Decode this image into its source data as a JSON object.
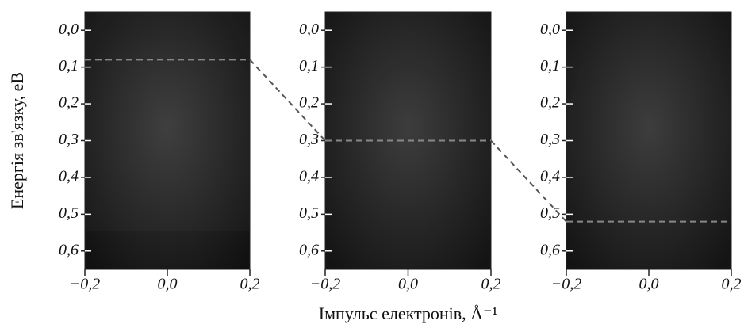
{
  "chart_data": [
    {
      "type": "image",
      "ylabel": "Енергія зв'язку, еВ",
      "xlim": [
        -0.2,
        0.2
      ],
      "ylim": [
        0.65,
        -0.05
      ],
      "xticks": [
        {
          "value": -0.2,
          "label": "−0,2"
        },
        {
          "value": 0,
          "label": "0,0"
        },
        {
          "value": 0.2,
          "label": "0,2"
        }
      ],
      "yticks": [
        {
          "value": 0,
          "label": "0,0"
        },
        {
          "value": 0.1,
          "label": "0,1"
        },
        {
          "value": 0.2,
          "label": "0,2"
        },
        {
          "value": 0.3,
          "label": "0,3"
        },
        {
          "value": 0.4,
          "label": "0,4"
        },
        {
          "value": 0.5,
          "label": "0,5"
        },
        {
          "value": 0.6,
          "label": "0,6"
        }
      ],
      "reference_line": 0.08
    },
    {
      "type": "image",
      "xlabel": "Імпульс електронів, Å⁻¹",
      "xlim": [
        -0.2,
        0.2
      ],
      "ylim": [
        0.65,
        -0.05
      ],
      "xticks": [
        {
          "value": -0.2,
          "label": "−0,2"
        },
        {
          "value": 0,
          "label": "0,0"
        },
        {
          "value": 0.2,
          "label": "0,2"
        }
      ],
      "yticks": [
        {
          "value": 0,
          "label": "0,0"
        },
        {
          "value": 0.1,
          "label": "0,1"
        },
        {
          "value": 0.2,
          "label": "0,2"
        },
        {
          "value": 0.3,
          "label": "0,3"
        },
        {
          "value": 0.4,
          "label": "0,4"
        },
        {
          "value": 0.5,
          "label": "0,5"
        },
        {
          "value": 0.6,
          "label": "0,6"
        }
      ],
      "reference_line": 0.3
    },
    {
      "type": "image",
      "xlim": [
        -0.2,
        0.2
      ],
      "ylim": [
        0.65,
        -0.05
      ],
      "xticks": [
        {
          "value": -0.2,
          "label": "−0,2"
        },
        {
          "value": 0,
          "label": "0,0"
        },
        {
          "value": 0.2,
          "label": "0,2"
        }
      ],
      "yticks": [
        {
          "value": 0,
          "label": "0,0"
        },
        {
          "value": 0.1,
          "label": "0,1"
        },
        {
          "value": 0.2,
          "label": "0,2"
        },
        {
          "value": 0.3,
          "label": "0,3"
        },
        {
          "value": 0.4,
          "label": "0,4"
        },
        {
          "value": 0.5,
          "label": "0,5"
        },
        {
          "value": 0.6,
          "label": "0,6"
        }
      ],
      "reference_line": 0.52
    }
  ]
}
